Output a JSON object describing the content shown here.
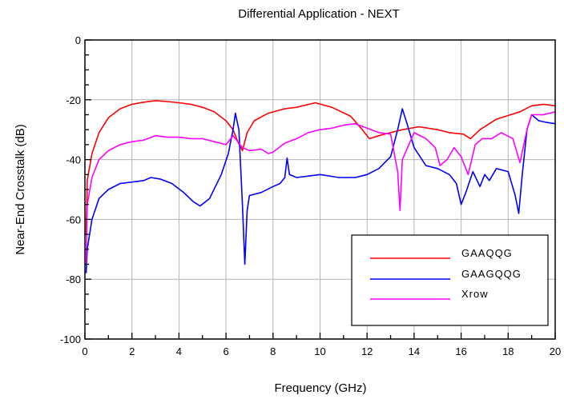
{
  "chart_data": {
    "type": "line",
    "title": "Differential Application - NEXT",
    "xlabel": "Frequency (GHz)",
    "ylabel": "Near-End Crosstalk (dB)",
    "xlim": [
      0,
      20
    ],
    "ylim": [
      -100,
      0
    ],
    "xticks": [
      "0",
      "2",
      "4",
      "6",
      "8",
      "10",
      "12",
      "14",
      "16",
      "18",
      "20"
    ],
    "yticks": [
      "0",
      "-20",
      "-40",
      "-60",
      "-80",
      "-100"
    ],
    "grid": true,
    "legend_position": "bottom-right",
    "series": [
      {
        "name": "GAAQQG",
        "color": "#ff0000",
        "points": [
          [
            0.05,
            -65
          ],
          [
            0.1,
            -47
          ],
          [
            0.3,
            -38
          ],
          [
            0.6,
            -31
          ],
          [
            1.0,
            -26
          ],
          [
            1.5,
            -23
          ],
          [
            2.0,
            -21.5
          ],
          [
            2.5,
            -20.8
          ],
          [
            3.0,
            -20.3
          ],
          [
            3.5,
            -20.6
          ],
          [
            4.0,
            -21
          ],
          [
            4.5,
            -21.5
          ],
          [
            5.0,
            -22.5
          ],
          [
            5.5,
            -24
          ],
          [
            6.0,
            -27
          ],
          [
            6.3,
            -30
          ],
          [
            6.5,
            -34
          ],
          [
            6.7,
            -37
          ],
          [
            6.9,
            -31
          ],
          [
            7.2,
            -27
          ],
          [
            7.8,
            -24.5
          ],
          [
            8.5,
            -23
          ],
          [
            9.0,
            -22.5
          ],
          [
            9.8,
            -21
          ],
          [
            10.5,
            -22.5
          ],
          [
            11.3,
            -25.5
          ],
          [
            11.8,
            -30
          ],
          [
            12.1,
            -33
          ],
          [
            12.5,
            -32
          ],
          [
            13.0,
            -31
          ],
          [
            13.5,
            -30
          ],
          [
            14.2,
            -29
          ],
          [
            15.0,
            -30
          ],
          [
            15.5,
            -31
          ],
          [
            16.1,
            -31.5
          ],
          [
            16.4,
            -33
          ],
          [
            16.8,
            -30
          ],
          [
            17.5,
            -26.5
          ],
          [
            18.5,
            -24
          ],
          [
            19.0,
            -22
          ],
          [
            19.5,
            -21.5
          ],
          [
            20.0,
            -22
          ]
        ]
      },
      {
        "name": "GAAGQQG",
        "color": "#0000ff",
        "points": [
          [
            0.05,
            -78
          ],
          [
            0.1,
            -70
          ],
          [
            0.3,
            -60
          ],
          [
            0.6,
            -53
          ],
          [
            1.0,
            -50
          ],
          [
            1.5,
            -48
          ],
          [
            2.0,
            -47.5
          ],
          [
            2.5,
            -47
          ],
          [
            2.8,
            -46
          ],
          [
            3.2,
            -46.5
          ],
          [
            3.7,
            -48
          ],
          [
            4.2,
            -51
          ],
          [
            4.6,
            -54
          ],
          [
            4.9,
            -55.5
          ],
          [
            5.3,
            -53
          ],
          [
            5.8,
            -45
          ],
          [
            6.1,
            -38
          ],
          [
            6.3,
            -30
          ],
          [
            6.4,
            -24.5
          ],
          [
            6.55,
            -30
          ],
          [
            6.7,
            -55
          ],
          [
            6.8,
            -75
          ],
          [
            6.9,
            -57
          ],
          [
            7.0,
            -52
          ],
          [
            7.5,
            -51
          ],
          [
            8.0,
            -49
          ],
          [
            8.3,
            -48
          ],
          [
            8.5,
            -46
          ],
          [
            8.6,
            -39.5
          ],
          [
            8.7,
            -45
          ],
          [
            9.0,
            -46
          ],
          [
            9.5,
            -45.5
          ],
          [
            10.0,
            -45
          ],
          [
            10.8,
            -46
          ],
          [
            11.5,
            -46
          ],
          [
            12.0,
            -45
          ],
          [
            12.5,
            -43
          ],
          [
            13.0,
            -39
          ],
          [
            13.3,
            -30
          ],
          [
            13.5,
            -23
          ],
          [
            13.7,
            -28
          ],
          [
            14.0,
            -36
          ],
          [
            14.5,
            -42
          ],
          [
            15.0,
            -43
          ],
          [
            15.5,
            -45
          ],
          [
            15.8,
            -48
          ],
          [
            16.0,
            -55
          ],
          [
            16.2,
            -51
          ],
          [
            16.5,
            -44
          ],
          [
            16.8,
            -49
          ],
          [
            17.0,
            -45
          ],
          [
            17.2,
            -47
          ],
          [
            17.5,
            -43
          ],
          [
            18.0,
            -44
          ],
          [
            18.3,
            -52
          ],
          [
            18.45,
            -58
          ],
          [
            18.6,
            -45
          ],
          [
            18.8,
            -30
          ],
          [
            19.0,
            -25
          ],
          [
            19.3,
            -27
          ],
          [
            19.6,
            -27.5
          ],
          [
            20.0,
            -28
          ]
        ]
      },
      {
        "name": "Xrow",
        "color": "#ff00ff",
        "points": [
          [
            0.05,
            -75
          ],
          [
            0.1,
            -55
          ],
          [
            0.3,
            -46
          ],
          [
            0.6,
            -40
          ],
          [
            1.0,
            -37
          ],
          [
            1.5,
            -35
          ],
          [
            2.0,
            -34
          ],
          [
            2.5,
            -33.5
          ],
          [
            3.0,
            -32
          ],
          [
            3.5,
            -32.5
          ],
          [
            4.0,
            -32.5
          ],
          [
            4.5,
            -33
          ],
          [
            5.0,
            -33
          ],
          [
            5.5,
            -34
          ],
          [
            6.0,
            -35
          ],
          [
            6.3,
            -32
          ],
          [
            6.4,
            -33
          ],
          [
            6.7,
            -36
          ],
          [
            7.0,
            -37
          ],
          [
            7.5,
            -36.5
          ],
          [
            7.8,
            -38
          ],
          [
            8.0,
            -37.5
          ],
          [
            8.5,
            -34.5
          ],
          [
            9.0,
            -33
          ],
          [
            9.5,
            -31
          ],
          [
            10.0,
            -30
          ],
          [
            10.5,
            -29.5
          ],
          [
            11.0,
            -28.5
          ],
          [
            11.5,
            -28
          ],
          [
            12.0,
            -29.5
          ],
          [
            12.5,
            -31
          ],
          [
            13.0,
            -31.5
          ],
          [
            13.3,
            -44
          ],
          [
            13.4,
            -57
          ],
          [
            13.5,
            -40
          ],
          [
            14.0,
            -31
          ],
          [
            14.5,
            -33
          ],
          [
            14.9,
            -36
          ],
          [
            15.1,
            -42
          ],
          [
            15.4,
            -40
          ],
          [
            15.7,
            -36
          ],
          [
            16.0,
            -39
          ],
          [
            16.3,
            -45
          ],
          [
            16.6,
            -35
          ],
          [
            16.9,
            -33
          ],
          [
            17.3,
            -33
          ],
          [
            17.7,
            -31
          ],
          [
            18.2,
            -33
          ],
          [
            18.5,
            -41
          ],
          [
            18.8,
            -30
          ],
          [
            19.0,
            -25
          ],
          [
            19.5,
            -25
          ],
          [
            20.0,
            -24
          ]
        ]
      }
    ]
  }
}
